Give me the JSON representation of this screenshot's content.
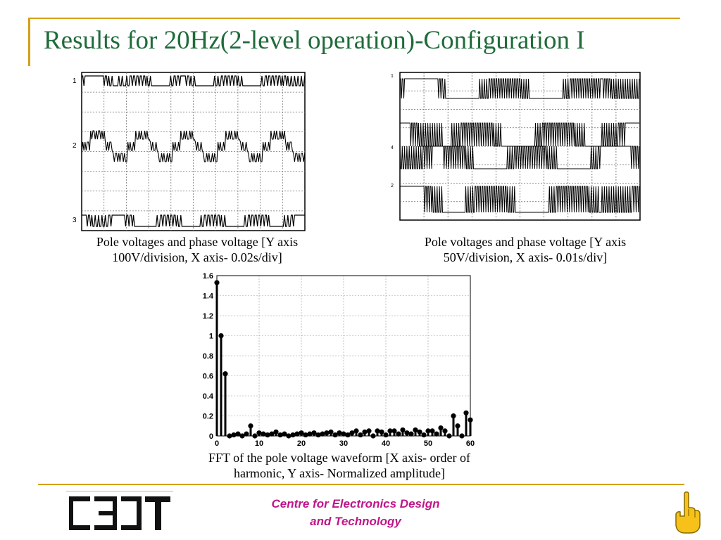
{
  "slide": {
    "title": "Results for 20Hz(2-level operation)-Configuration I"
  },
  "figure_left": {
    "channel_labels": [
      "1",
      "2",
      "3"
    ],
    "caption_line1": "Pole voltages and phase voltage [Y axis",
    "caption_line2": "100V/division, X axis- 0.02s/div]"
  },
  "figure_right": {
    "channel_labels": [
      "1",
      "4",
      "2"
    ],
    "caption_line1": "Pole voltages and phase voltage [Y axis",
    "caption_line2": "50V/division, X axis- 0.01s/div]"
  },
  "fft": {
    "caption_line1": "FFT of the pole voltage waveform [X axis- order of",
    "caption_line2": "harmonic, Y axis- Normalized amplitude]"
  },
  "chart_data": {
    "type": "stem",
    "title": "",
    "xlabel": "",
    "ylabel": "",
    "xlim": [
      0,
      60
    ],
    "ylim": [
      0,
      1.6
    ],
    "xticks": [
      0,
      10,
      20,
      30,
      40,
      50,
      60
    ],
    "xtick_labels": [
      "0",
      "10",
      "20",
      "30",
      "40",
      "50",
      "60"
    ],
    "yticks": [
      0,
      0.2,
      0.4,
      0.6,
      0.8,
      1,
      1.2,
      1.4,
      1.6
    ],
    "ytick_labels": [
      "0",
      "0.2",
      "0.4",
      "0.6",
      "0.8",
      "1",
      "1.2",
      "1.4",
      "1.6"
    ],
    "grid": true,
    "x": [
      0,
      1,
      2,
      3,
      4,
      5,
      6,
      7,
      8,
      9,
      10,
      11,
      12,
      13,
      14,
      15,
      16,
      17,
      18,
      19,
      20,
      21,
      22,
      23,
      24,
      25,
      26,
      27,
      28,
      29,
      30,
      31,
      32,
      33,
      34,
      35,
      36,
      37,
      38,
      39,
      40,
      41,
      42,
      43,
      44,
      45,
      46,
      47,
      48,
      49,
      50,
      51,
      52,
      53,
      54,
      55,
      56,
      57,
      58,
      59,
      60
    ],
    "values": [
      1.53,
      1.0,
      0.62,
      0.0,
      0.01,
      0.02,
      0.0,
      0.02,
      0.1,
      0.0,
      0.03,
      0.02,
      0.01,
      0.02,
      0.04,
      0.01,
      0.02,
      0.0,
      0.01,
      0.02,
      0.03,
      0.01,
      0.02,
      0.03,
      0.01,
      0.02,
      0.03,
      0.04,
      0.01,
      0.03,
      0.02,
      0.01,
      0.03,
      0.05,
      0.01,
      0.04,
      0.05,
      0.0,
      0.05,
      0.04,
      0.01,
      0.05,
      0.05,
      0.02,
      0.06,
      0.03,
      0.02,
      0.06,
      0.04,
      0.01,
      0.05,
      0.05,
      0.02,
      0.08,
      0.05,
      0.0,
      0.2,
      0.1,
      0.0,
      0.23,
      0.16
    ]
  },
  "footer": {
    "logo_text": "CEDT",
    "centre_line1": "Centre for Electronics Design",
    "centre_line2": "and Technology",
    "nav_icon": "pointing-hand-icon",
    "accent_color": "#d4a017",
    "title_color": "#1f6b3a",
    "footer_text_color": "#c0158a"
  }
}
